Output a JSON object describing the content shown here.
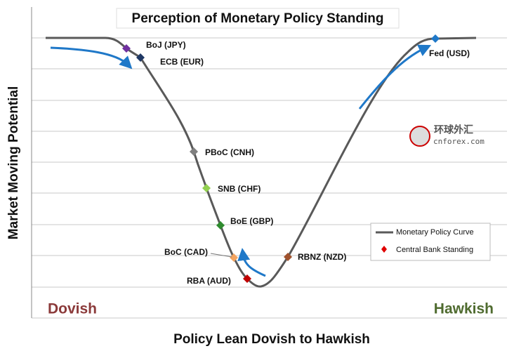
{
  "header": {
    "title": "Perception of Monetary Policy Standing"
  },
  "axes": {
    "y_label": "Market Moving Potential",
    "x_label": "Policy Lean Dovish to Hawkish",
    "left_end": "Dovish",
    "right_end": "Hawkish"
  },
  "banks": [
    "BoJ (JPY)",
    "ECB (EUR)",
    "PBoC (CNH)",
    "SNB (CHF)",
    "BoE (GBP)",
    "BoC (CAD)",
    "RBA (AUD)",
    "RBNZ (NZD)",
    "Fed (USD)"
  ],
  "legend": [
    "Monetary Policy Curve",
    "Central Bank Standing"
  ],
  "watermark": [
    "环球外汇",
    "cnforex.com"
  ]
}
